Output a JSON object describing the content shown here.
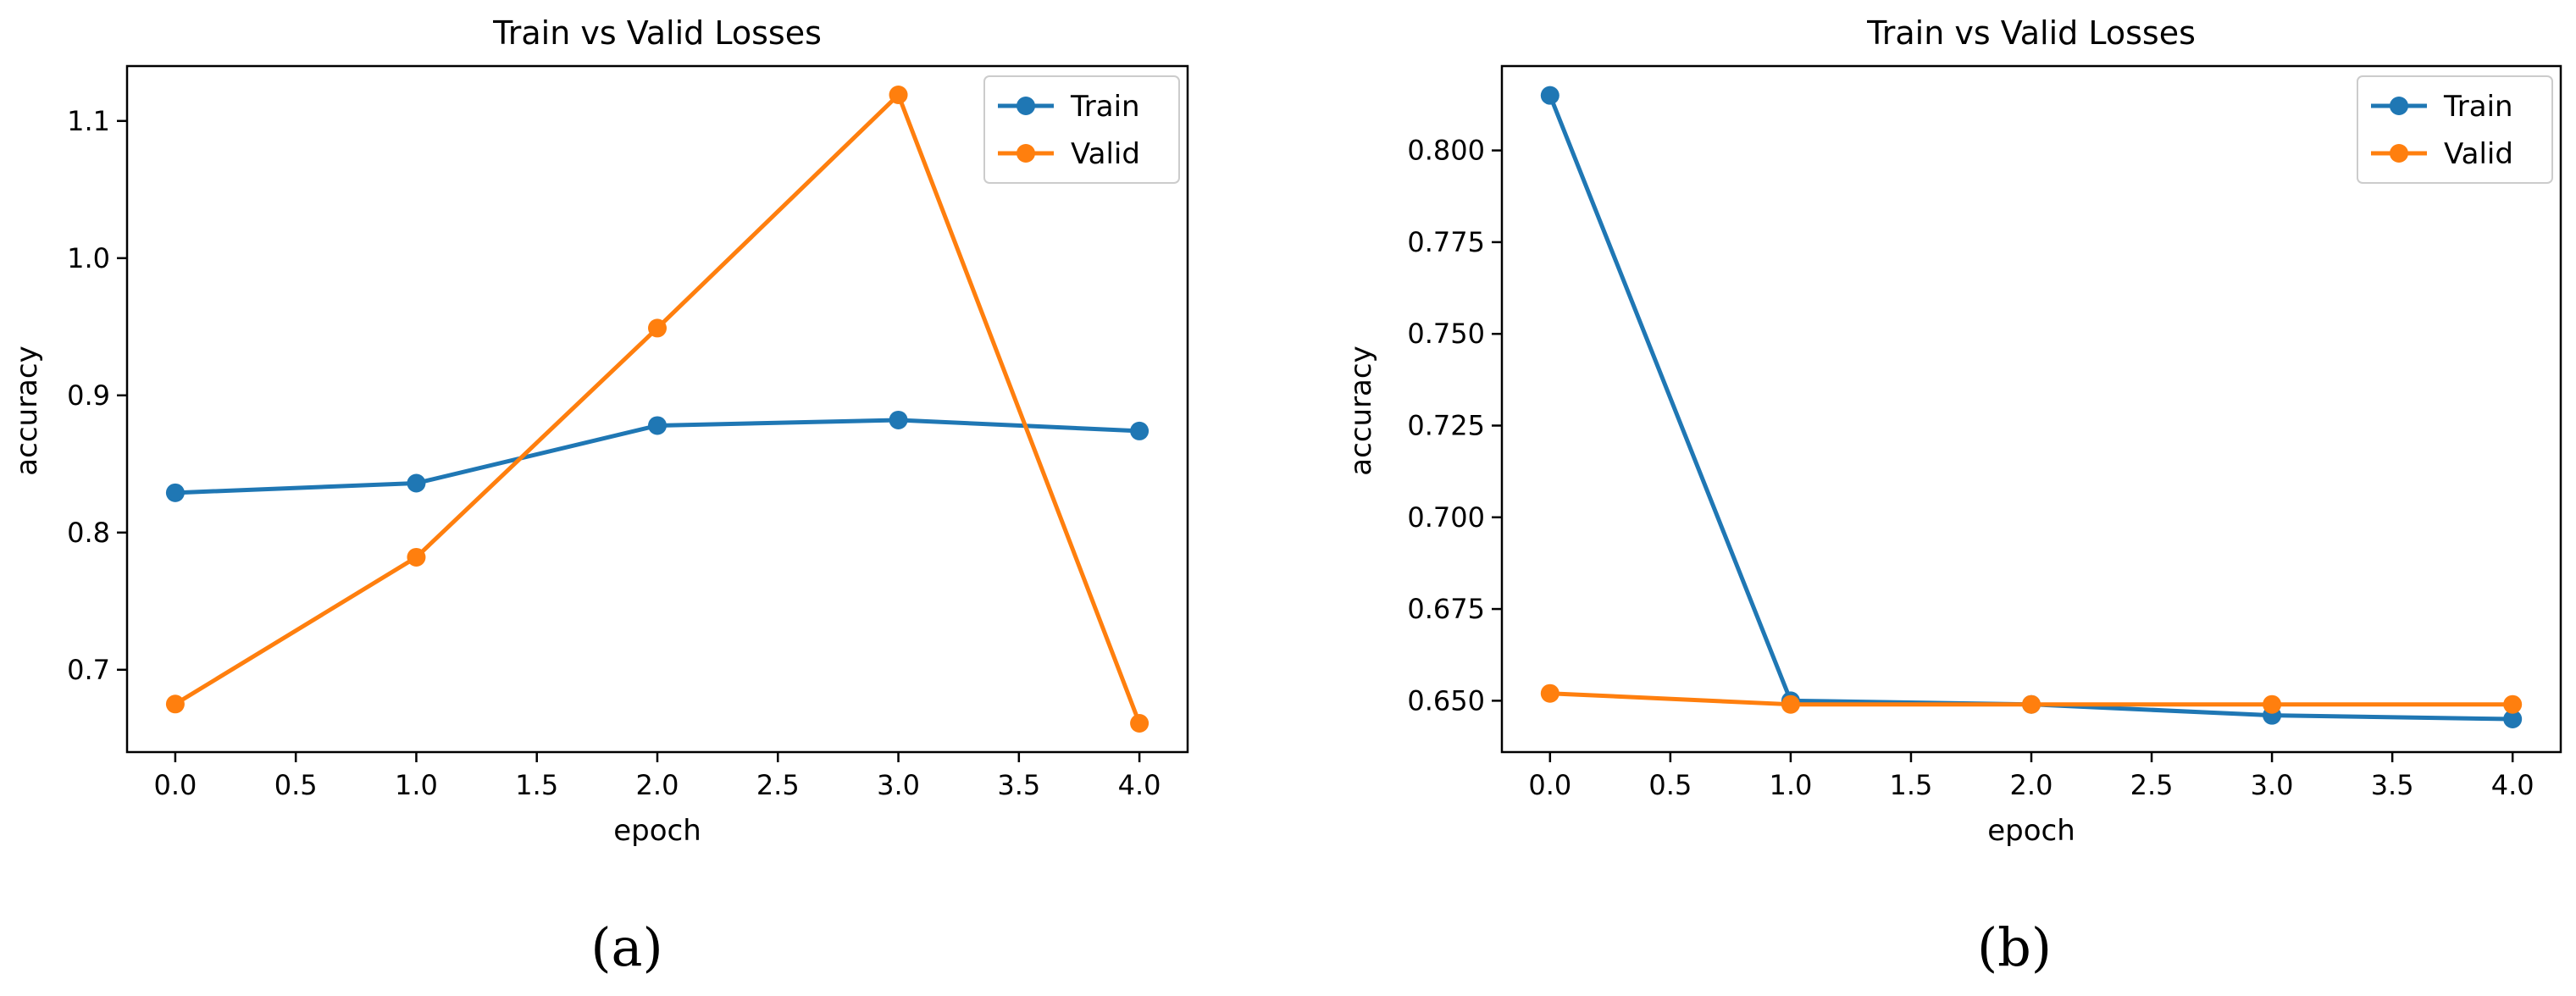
{
  "chart_data": [
    {
      "type": "line",
      "title": "Train vs Valid Losses",
      "xlabel": "epoch",
      "ylabel": "accuracy",
      "caption": "(a)",
      "xlim": [
        -0.2,
        4.2
      ],
      "ylim": [
        0.64,
        1.14
      ],
      "xticks": [
        0.0,
        0.5,
        1.0,
        1.5,
        2.0,
        2.5,
        3.0,
        3.5,
        4.0
      ],
      "xtick_labels": [
        "0.0",
        "0.5",
        "1.0",
        "1.5",
        "2.0",
        "2.5",
        "3.0",
        "3.5",
        "4.0"
      ],
      "yticks": [
        0.7,
        0.8,
        0.9,
        1.0,
        1.1
      ],
      "ytick_labels": [
        "0.7",
        "0.8",
        "0.9",
        "1.0",
        "1.1"
      ],
      "legend_position": "top-right",
      "x": [
        0,
        1,
        2,
        3,
        4
      ],
      "series": [
        {
          "name": "Train",
          "color": "#1f77b4",
          "values": [
            0.829,
            0.836,
            0.878,
            0.882,
            0.874
          ]
        },
        {
          "name": "Valid",
          "color": "#ff7f0e",
          "values": [
            0.675,
            0.782,
            0.949,
            1.119,
            0.661
          ]
        }
      ]
    },
    {
      "type": "line",
      "title": "Train vs Valid Losses",
      "xlabel": "epoch",
      "ylabel": "accuracy",
      "caption": "(b)",
      "xlim": [
        -0.2,
        4.2
      ],
      "ylim": [
        0.636,
        0.823
      ],
      "xticks": [
        0.0,
        0.5,
        1.0,
        1.5,
        2.0,
        2.5,
        3.0,
        3.5,
        4.0
      ],
      "xtick_labels": [
        "0.0",
        "0.5",
        "1.0",
        "1.5",
        "2.0",
        "2.5",
        "3.0",
        "3.5",
        "4.0"
      ],
      "yticks": [
        0.65,
        0.675,
        0.7,
        0.725,
        0.75,
        0.775,
        0.8
      ],
      "ytick_labels": [
        "0.650",
        "0.675",
        "0.700",
        "0.725",
        "0.750",
        "0.775",
        "0.800"
      ],
      "legend_position": "top-right",
      "x": [
        0,
        1,
        2,
        3,
        4
      ],
      "series": [
        {
          "name": "Train",
          "color": "#1f77b4",
          "values": [
            0.815,
            0.65,
            0.649,
            0.646,
            0.645
          ]
        },
        {
          "name": "Valid",
          "color": "#ff7f0e",
          "values": [
            0.652,
            0.649,
            0.649,
            0.649,
            0.649
          ]
        }
      ]
    }
  ]
}
